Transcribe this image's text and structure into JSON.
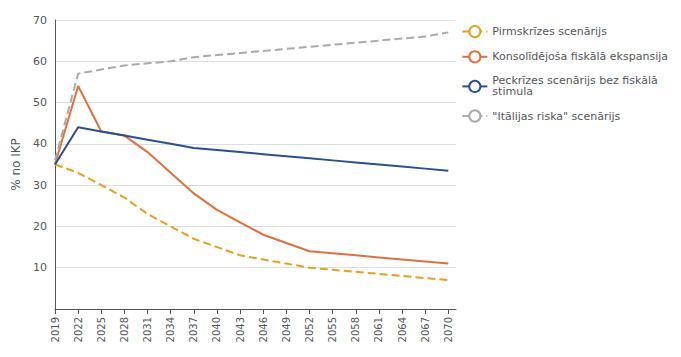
{
  "chart_data": {
    "type": "line",
    "ylabel": "% no IKP",
    "x": [
      2019,
      2022,
      2025,
      2028,
      2031,
      2034,
      2037,
      2040,
      2043,
      2046,
      2049,
      2052,
      2055,
      2058,
      2061,
      2064,
      2067,
      2070
    ],
    "series": [
      {
        "name": "Pirmskrīzes scenārijs",
        "color": "#E8A020",
        "line_style": "dashed",
        "values": [
          35,
          33,
          30,
          27,
          23,
          20,
          17,
          15,
          13,
          12,
          11,
          10,
          9.5,
          9,
          8.5,
          8,
          7.5,
          7
        ]
      },
      {
        "name": "Konsolīdējoša fiskālā ekspansija",
        "color": "#E07040",
        "line_style": "solid",
        "values": [
          35,
          54,
          43,
          42,
          38,
          33,
          28,
          24,
          21,
          18,
          16,
          14,
          13.5,
          13,
          12.5,
          12,
          11.5,
          11
        ]
      },
      {
        "name": "Peckrīzes scenārijs bez fiskālā\nstimula",
        "color": "#2B4F96",
        "line_style": "solid",
        "values": [
          35,
          44,
          43,
          42,
          41,
          40,
          39,
          38.5,
          38,
          37.5,
          37,
          36.5,
          36,
          35.5,
          35,
          34.5,
          34,
          33.5
        ]
      },
      {
        "name": "\"Itālijas riska\" scenārijs",
        "color": "#AAAAAA",
        "line_style": "dashed",
        "values": [
          36,
          57,
          58,
          59,
          59.5,
          60,
          61,
          61.5,
          62,
          62.5,
          63,
          63.5,
          64,
          64.5,
          65,
          65.5,
          66,
          67
        ]
      }
    ],
    "xlim": [
      2019,
      2071
    ],
    "xticks": [
      2019,
      2022,
      2025,
      2028,
      2031,
      2034,
      2037,
      2040,
      2043,
      2046,
      2049,
      2052,
      2055,
      2058,
      2061,
      2064,
      2067,
      2070
    ],
    "ylim": [
      0,
      70
    ],
    "yticks": [
      10,
      20,
      30,
      40,
      50,
      60,
      70
    ],
    "grid": true,
    "legend": "right"
  }
}
